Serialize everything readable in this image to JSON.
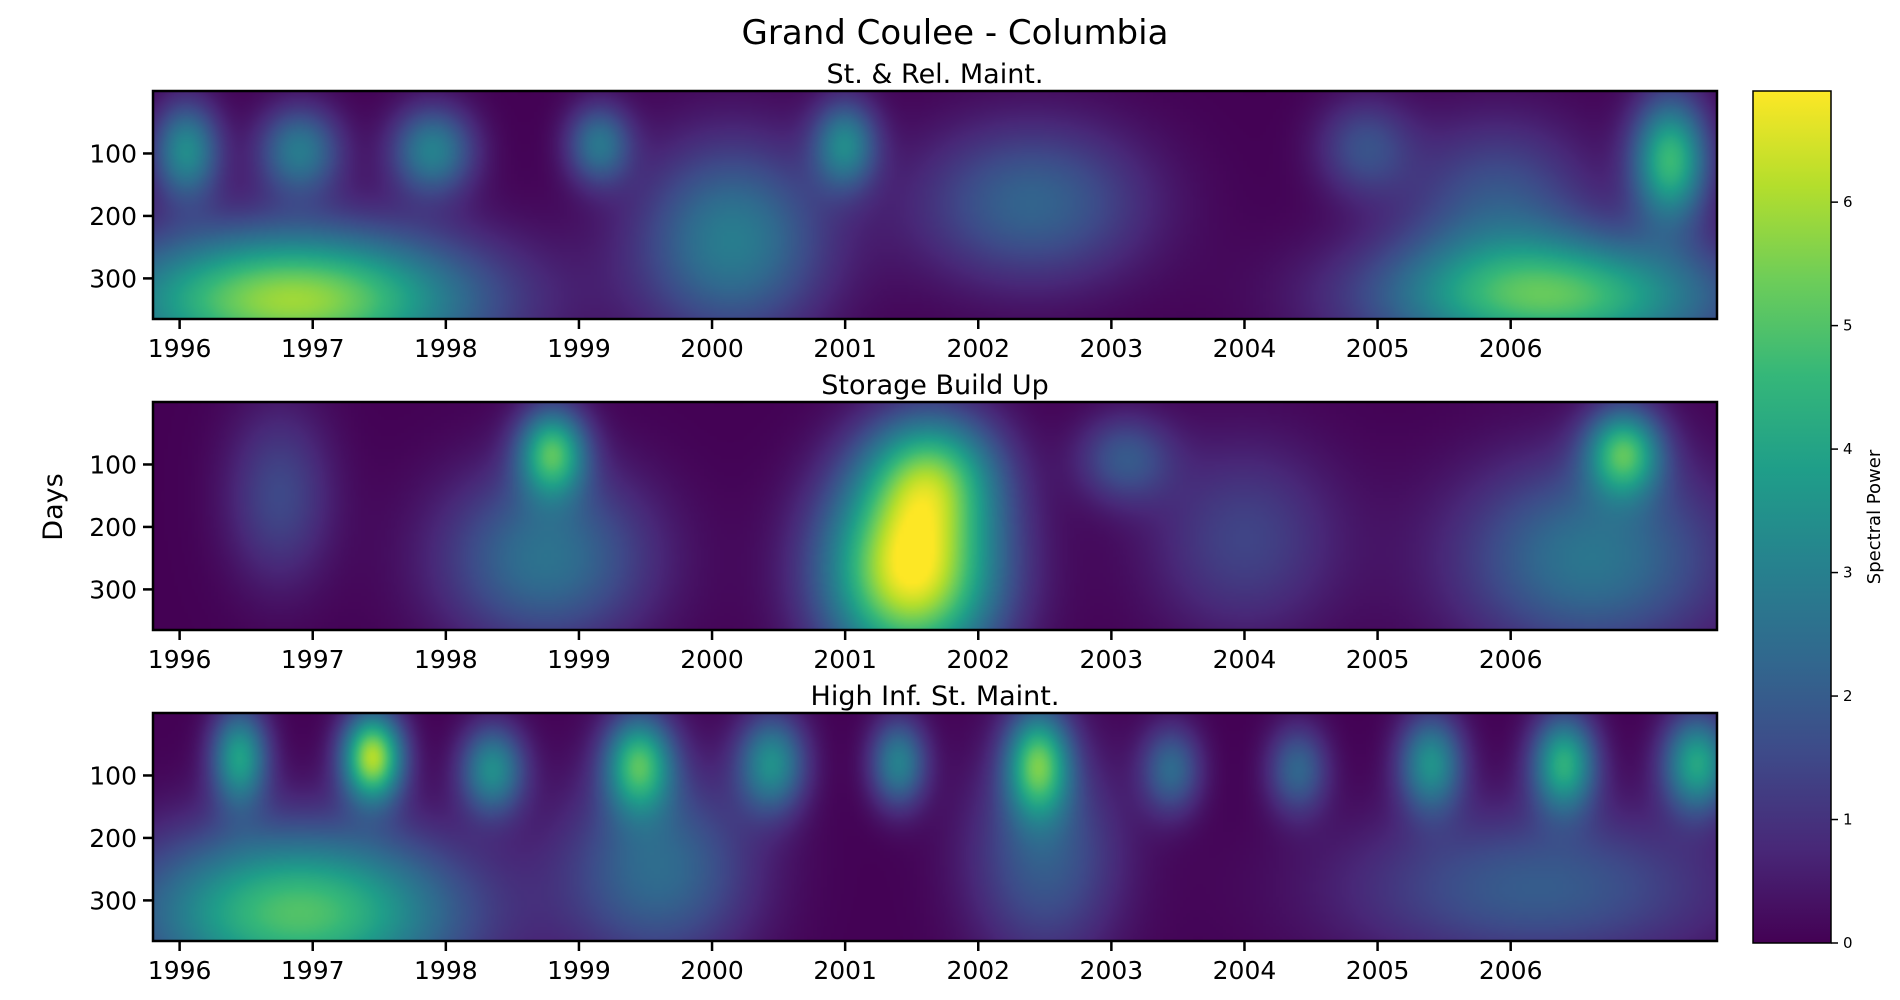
{
  "figure": {
    "title": "Grand Coulee - Columbia",
    "ylabel": "Days",
    "colorbar_label": "Spectral Power"
  },
  "chart_data": [
    {
      "type": "heatmap",
      "title": "St. & Rel. Maint.",
      "ylabel": "Days",
      "xlim": [
        1995.8,
        2007.55
      ],
      "ylim": [
        365,
        0
      ],
      "x_ticks": [
        1996,
        1997,
        1998,
        1999,
        2000,
        2001,
        2002,
        2003,
        2004,
        2005,
        2006
      ],
      "y_ticks": [
        100,
        200,
        300
      ],
      "colormap": "viridis",
      "vmin": 0,
      "vmax": 6.9,
      "blobs": [
        {
          "x": 1996.85,
          "y": 335,
          "sx": 0.95,
          "sy": 80,
          "v": 5.9
        },
        {
          "x": 1996.05,
          "y": 95,
          "sx": 0.18,
          "sy": 55,
          "v": 3.3
        },
        {
          "x": 1996.9,
          "y": 95,
          "sx": 0.22,
          "sy": 50,
          "v": 2.8
        },
        {
          "x": 1997.9,
          "y": 95,
          "sx": 0.22,
          "sy": 50,
          "v": 3.0
        },
        {
          "x": 1999.15,
          "y": 85,
          "sx": 0.17,
          "sy": 45,
          "v": 2.6
        },
        {
          "x": 2000.15,
          "y": 240,
          "sx": 0.5,
          "sy": 110,
          "v": 2.9
        },
        {
          "x": 2001.0,
          "y": 85,
          "sx": 0.17,
          "sy": 50,
          "v": 3.0
        },
        {
          "x": 2002.4,
          "y": 180,
          "sx": 0.6,
          "sy": 90,
          "v": 2.2
        },
        {
          "x": 2004.9,
          "y": 90,
          "sx": 0.25,
          "sy": 55,
          "v": 1.6
        },
        {
          "x": 2005.9,
          "y": 170,
          "sx": 0.5,
          "sy": 90,
          "v": 1.7
        },
        {
          "x": 2006.3,
          "y": 330,
          "sx": 0.9,
          "sy": 70,
          "v": 5.0
        },
        {
          "x": 2007.2,
          "y": 110,
          "sx": 0.2,
          "sy": 70,
          "v": 4.6
        }
      ]
    },
    {
      "type": "heatmap",
      "title": "Storage Build Up",
      "ylabel": "Days",
      "xlim": [
        1995.8,
        2007.55
      ],
      "ylim": [
        365,
        0
      ],
      "x_ticks": [
        1996,
        1997,
        1998,
        1999,
        2000,
        2001,
        2002,
        2003,
        2004,
        2005,
        2006
      ],
      "y_ticks": [
        100,
        200,
        300
      ],
      "colormap": "viridis",
      "vmin": 0,
      "vmax": 6.9,
      "blobs": [
        {
          "x": 1996.75,
          "y": 150,
          "sx": 0.28,
          "sy": 100,
          "v": 1.5
        },
        {
          "x": 1998.8,
          "y": 80,
          "sx": 0.18,
          "sy": 50,
          "v": 4.5
        },
        {
          "x": 1998.75,
          "y": 250,
          "sx": 0.55,
          "sy": 100,
          "v": 2.6
        },
        {
          "x": 2001.5,
          "y": 270,
          "sx": 0.45,
          "sy": 110,
          "v": 6.9
        },
        {
          "x": 2001.65,
          "y": 110,
          "sx": 0.35,
          "sy": 70,
          "v": 3.6
        },
        {
          "x": 2003.1,
          "y": 90,
          "sx": 0.25,
          "sy": 50,
          "v": 1.8
        },
        {
          "x": 2004.0,
          "y": 220,
          "sx": 0.5,
          "sy": 110,
          "v": 1.4
        },
        {
          "x": 2006.85,
          "y": 80,
          "sx": 0.2,
          "sy": 50,
          "v": 4.4
        },
        {
          "x": 2006.6,
          "y": 250,
          "sx": 0.7,
          "sy": 110,
          "v": 2.7
        }
      ]
    },
    {
      "type": "heatmap",
      "title": "High Inf. St. Maint.",
      "ylabel": "Days",
      "xlim": [
        1995.8,
        2007.55
      ],
      "ylim": [
        365,
        0
      ],
      "x_ticks": [
        1996,
        1997,
        1998,
        1999,
        2000,
        2001,
        2002,
        2003,
        2004,
        2005,
        2006
      ],
      "y_ticks": [
        100,
        200,
        300
      ],
      "colormap": "viridis",
      "vmin": 0,
      "vmax": 6.9,
      "blobs": [
        {
          "x": 1996.9,
          "y": 320,
          "sx": 0.85,
          "sy": 95,
          "v": 5.0
        },
        {
          "x": 1996.45,
          "y": 70,
          "sx": 0.15,
          "sy": 55,
          "v": 3.8
        },
        {
          "x": 1997.45,
          "y": 70,
          "sx": 0.16,
          "sy": 50,
          "v": 6.0
        },
        {
          "x": 1998.35,
          "y": 90,
          "sx": 0.17,
          "sy": 50,
          "v": 3.3
        },
        {
          "x": 1999.45,
          "y": 80,
          "sx": 0.18,
          "sy": 55,
          "v": 4.4
        },
        {
          "x": 1999.6,
          "y": 250,
          "sx": 0.5,
          "sy": 110,
          "v": 2.4
        },
        {
          "x": 2000.45,
          "y": 80,
          "sx": 0.18,
          "sy": 55,
          "v": 3.3
        },
        {
          "x": 2001.4,
          "y": 80,
          "sx": 0.15,
          "sy": 50,
          "v": 3.0
        },
        {
          "x": 2002.45,
          "y": 80,
          "sx": 0.17,
          "sy": 60,
          "v": 4.6
        },
        {
          "x": 2002.5,
          "y": 230,
          "sx": 0.4,
          "sy": 120,
          "v": 2.0
        },
        {
          "x": 2003.45,
          "y": 90,
          "sx": 0.16,
          "sy": 50,
          "v": 2.3
        },
        {
          "x": 2004.4,
          "y": 90,
          "sx": 0.16,
          "sy": 50,
          "v": 2.2
        },
        {
          "x": 2005.4,
          "y": 80,
          "sx": 0.17,
          "sy": 55,
          "v": 3.4
        },
        {
          "x": 2006.4,
          "y": 80,
          "sx": 0.17,
          "sy": 55,
          "v": 4.2
        },
        {
          "x": 2006.2,
          "y": 280,
          "sx": 1.0,
          "sy": 90,
          "v": 2.0
        },
        {
          "x": 2007.4,
          "y": 80,
          "sx": 0.18,
          "sy": 55,
          "v": 4.0
        }
      ]
    }
  ],
  "colorbar": {
    "ticks": [
      0,
      1,
      2,
      3,
      4,
      5,
      6
    ],
    "range": [
      0,
      6.9
    ]
  }
}
